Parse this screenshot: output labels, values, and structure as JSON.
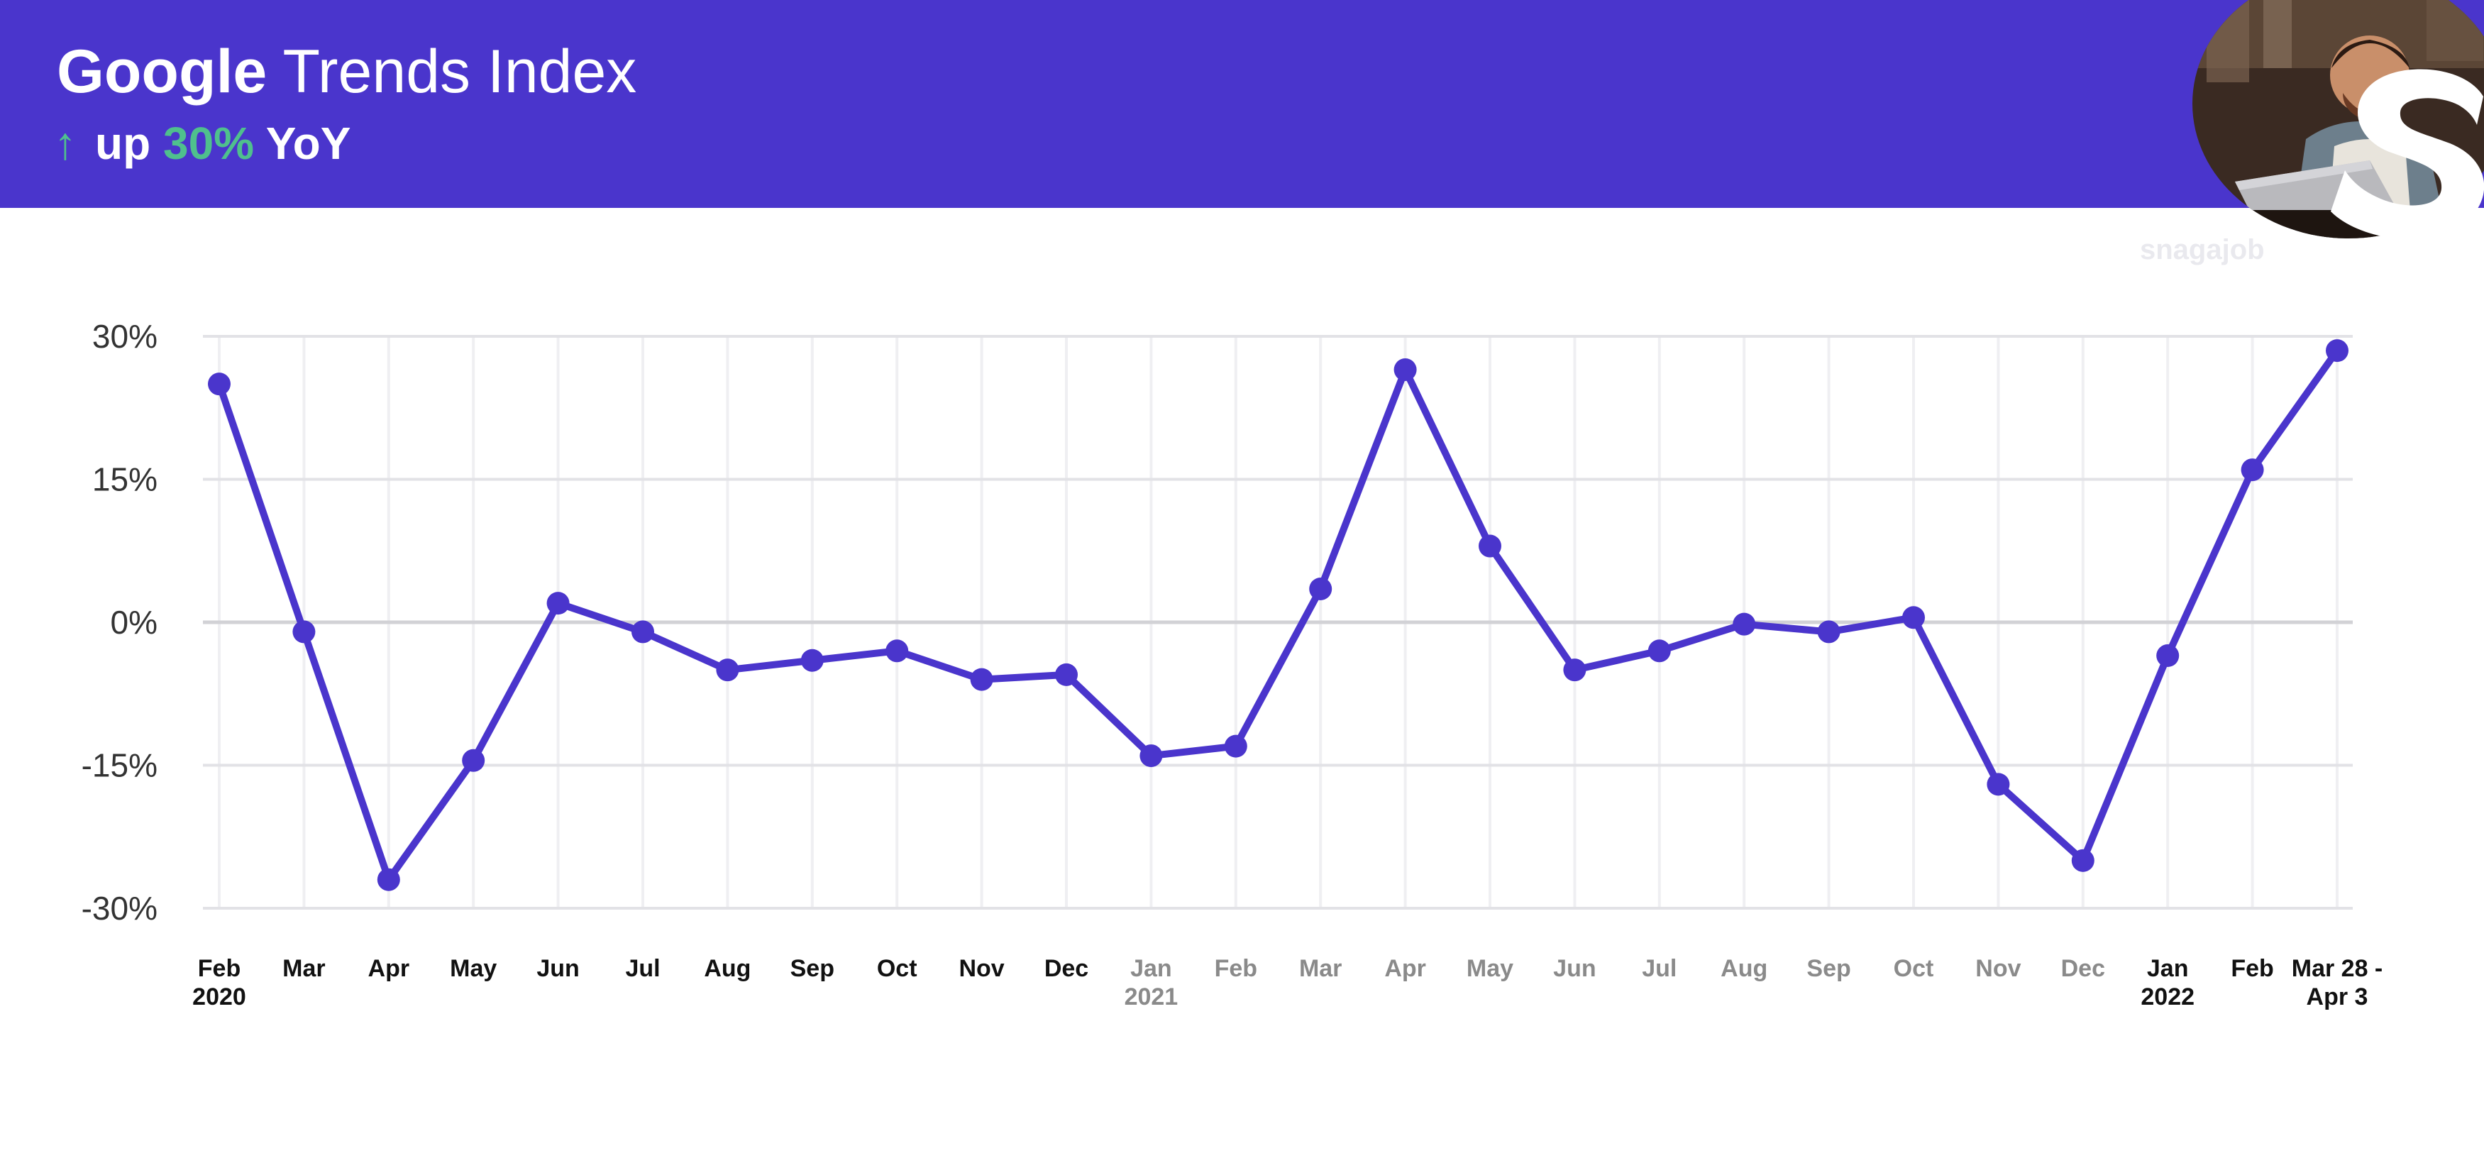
{
  "header": {
    "title_brand": "Google",
    "title_rest": " Trends Index",
    "arrow": "↑",
    "sub_up": "up",
    "sub_pct": "30%",
    "sub_yoy": "YoY"
  },
  "logo": {
    "name": "snagajob",
    "watermark": "snagajob"
  },
  "colors": {
    "band": "#4a35cc",
    "line": "#4a35cc",
    "accent_green": "#4fc08d",
    "tick_dark": "#111111",
    "tick_gray": "#8a8a8a"
  },
  "chart_data": {
    "type": "line",
    "title": "Google Trends Index",
    "subtitle": "up 30% YoY",
    "xlabel": "",
    "ylabel": "",
    "ylim": [
      -30,
      30
    ],
    "yticks": [
      30,
      15,
      0,
      -15,
      -30
    ],
    "ytick_labels": [
      "30%",
      "15%",
      "0%",
      "-15%",
      "-30%"
    ],
    "grid": true,
    "x_labels": [
      {
        "line1": "Feb",
        "line2": "2020",
        "muted": false
      },
      {
        "line1": "Mar",
        "line2": "",
        "muted": false
      },
      {
        "line1": "Apr",
        "line2": "",
        "muted": false
      },
      {
        "line1": "May",
        "line2": "",
        "muted": false
      },
      {
        "line1": "Jun",
        "line2": "",
        "muted": false
      },
      {
        "line1": "Jul",
        "line2": "",
        "muted": false
      },
      {
        "line1": "Aug",
        "line2": "",
        "muted": false
      },
      {
        "line1": "Sep",
        "line2": "",
        "muted": false
      },
      {
        "line1": "Oct",
        "line2": "",
        "muted": false
      },
      {
        "line1": "Nov",
        "line2": "",
        "muted": false
      },
      {
        "line1": "Dec",
        "line2": "",
        "muted": false
      },
      {
        "line1": "Jan",
        "line2": "2021",
        "muted": true
      },
      {
        "line1": "Feb",
        "line2": "",
        "muted": true
      },
      {
        "line1": "Mar",
        "line2": "",
        "muted": true
      },
      {
        "line1": "Apr",
        "line2": "",
        "muted": true
      },
      {
        "line1": "May",
        "line2": "",
        "muted": true
      },
      {
        "line1": "Jun",
        "line2": "",
        "muted": true
      },
      {
        "line1": "Jul",
        "line2": "",
        "muted": true
      },
      {
        "line1": "Aug",
        "line2": "",
        "muted": true
      },
      {
        "line1": "Sep",
        "line2": "",
        "muted": true
      },
      {
        "line1": "Oct",
        "line2": "",
        "muted": true
      },
      {
        "line1": "Nov",
        "line2": "",
        "muted": true
      },
      {
        "line1": "Dec",
        "line2": "",
        "muted": true
      },
      {
        "line1": "Jan",
        "line2": "2022",
        "muted": false
      },
      {
        "line1": "Feb",
        "line2": "",
        "muted": false
      },
      {
        "line1": "Mar 28 -",
        "line2": "Apr 3",
        "muted": false
      }
    ],
    "series": [
      {
        "values": [
          25,
          -1,
          -27,
          -14.5,
          2,
          -1,
          -5,
          -4,
          -3,
          -6,
          -5.5,
          -14,
          -13,
          3.5,
          26.5,
          8,
          -5,
          -3,
          -0.2,
          -1,
          0.5,
          -17,
          -25,
          -3.5,
          16,
          28.5
        ]
      }
    ]
  }
}
